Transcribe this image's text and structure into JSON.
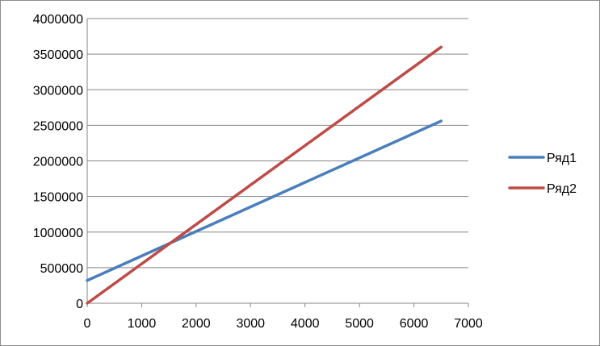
{
  "chart_data": {
    "type": "line",
    "title": "",
    "xlabel": "",
    "ylabel": "",
    "xlim": [
      0,
      7000
    ],
    "ylim": [
      0,
      4000000
    ],
    "x_ticks": [
      "0",
      "1000",
      "2000",
      "3000",
      "4000",
      "5000",
      "6000",
      "7000"
    ],
    "y_ticks": [
      "0",
      "500000",
      "1000000",
      "1500000",
      "2000000",
      "2500000",
      "3000000",
      "3500000",
      "4000000"
    ],
    "grid": "horizontal",
    "legend_position": "right",
    "series": [
      {
        "name": "Ряд1",
        "color": "#4a7ebb",
        "x": [
          0,
          6500
        ],
        "y": [
          320000,
          2560000
        ]
      },
      {
        "name": "Ряд2",
        "color": "#be4b48",
        "x": [
          0,
          6500
        ],
        "y": [
          0,
          3600000
        ]
      }
    ]
  }
}
